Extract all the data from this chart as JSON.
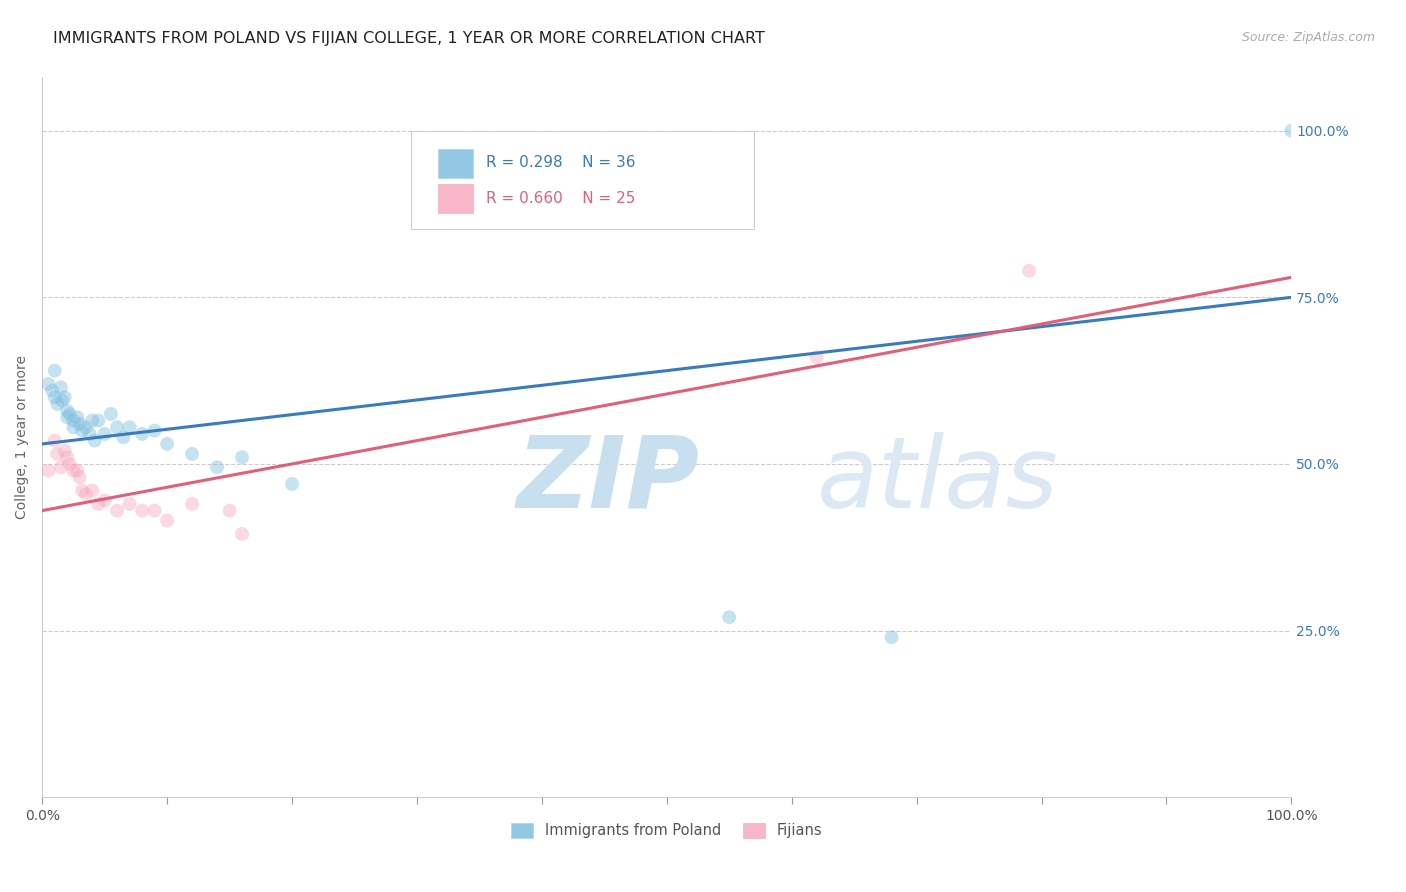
{
  "title": "IMMIGRANTS FROM POLAND VS FIJIAN COLLEGE, 1 YEAR OR MORE CORRELATION CHART",
  "source": "Source: ZipAtlas.com",
  "ylabel": "College, 1 year or more",
  "blue_R": "R = 0.298",
  "blue_N": "N = 36",
  "pink_R": "R = 0.660",
  "pink_N": "N = 25",
  "legend_labels": [
    "Immigrants from Poland",
    "Fijians"
  ],
  "blue_scatter_x": [
    0.005,
    0.008,
    0.01,
    0.01,
    0.012,
    0.015,
    0.016,
    0.018,
    0.02,
    0.02,
    0.022,
    0.025,
    0.025,
    0.028,
    0.03,
    0.032,
    0.035,
    0.038,
    0.04,
    0.042,
    0.045,
    0.05,
    0.055,
    0.06,
    0.065,
    0.07,
    0.08,
    0.09,
    0.1,
    0.12,
    0.14,
    0.16,
    0.2,
    0.55,
    0.68,
    1.0
  ],
  "blue_scatter_y": [
    0.62,
    0.61,
    0.64,
    0.6,
    0.59,
    0.615,
    0.595,
    0.6,
    0.58,
    0.57,
    0.575,
    0.565,
    0.555,
    0.57,
    0.56,
    0.55,
    0.555,
    0.545,
    0.565,
    0.535,
    0.565,
    0.545,
    0.575,
    0.555,
    0.54,
    0.555,
    0.545,
    0.55,
    0.53,
    0.515,
    0.495,
    0.51,
    0.47,
    0.27,
    0.24,
    1.0
  ],
  "pink_scatter_x": [
    0.005,
    0.01,
    0.012,
    0.015,
    0.018,
    0.02,
    0.022,
    0.025,
    0.028,
    0.03,
    0.032,
    0.035,
    0.04,
    0.045,
    0.05,
    0.06,
    0.07,
    0.08,
    0.09,
    0.1,
    0.12,
    0.15,
    0.16,
    0.62,
    0.79
  ],
  "pink_scatter_y": [
    0.49,
    0.535,
    0.515,
    0.495,
    0.52,
    0.51,
    0.5,
    0.49,
    0.49,
    0.48,
    0.46,
    0.455,
    0.46,
    0.44,
    0.445,
    0.43,
    0.44,
    0.43,
    0.43,
    0.415,
    0.44,
    0.43,
    0.395,
    0.66,
    0.79
  ],
  "blue_line_x": [
    0.0,
    1.0
  ],
  "blue_line_y_start": 0.53,
  "blue_line_y_end": 0.75,
  "pink_line_x": [
    0.0,
    1.0
  ],
  "pink_line_y_start": 0.43,
  "pink_line_y_end": 0.78,
  "xlim": [
    0.0,
    1.0
  ],
  "ylim": [
    0.0,
    1.08
  ],
  "yticks": [
    0.25,
    0.5,
    0.75,
    1.0
  ],
  "scatter_size": 100,
  "scatter_alpha": 0.45,
  "blue_color": "#7fbfdf",
  "blue_line_color": "#3a7abf",
  "pink_color": "#f8aabf",
  "pink_line_color": "#e0607a",
  "grid_color": "#cccccc",
  "watermark_zip_color": "#c8dff0",
  "watermark_atlas_color": "#dde8f5",
  "background_color": "#ffffff",
  "title_fontsize": 11.5,
  "source_fontsize": 9,
  "axis_label_fontsize": 10,
  "tick_fontsize": 10
}
